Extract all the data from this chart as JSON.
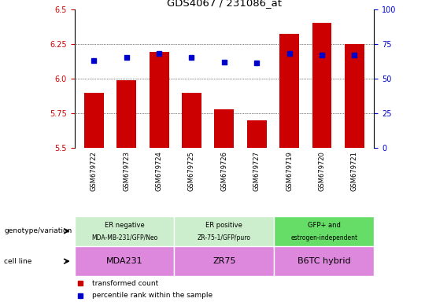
{
  "title": "GDS4067 / 231086_at",
  "samples": [
    "GSM679722",
    "GSM679723",
    "GSM679724",
    "GSM679725",
    "GSM679726",
    "GSM679727",
    "GSM679719",
    "GSM679720",
    "GSM679721"
  ],
  "bar_values": [
    5.9,
    5.99,
    6.19,
    5.9,
    5.78,
    5.7,
    6.32,
    6.4,
    6.25
  ],
  "dot_values": [
    6.13,
    6.15,
    6.18,
    6.15,
    6.12,
    6.11,
    6.18,
    6.17,
    6.17
  ],
  "ylim_left": [
    5.5,
    6.5
  ],
  "ylim_right": [
    0,
    100
  ],
  "yticks_left": [
    5.5,
    5.75,
    6.0,
    6.25,
    6.5
  ],
  "yticks_right": [
    0,
    25,
    50,
    75,
    100
  ],
  "bar_color": "#CC0000",
  "dot_color": "#0000CC",
  "group_colors": [
    "#cceecc",
    "#cceecc",
    "#66dd66"
  ],
  "cell_line_color": "#dd88dd",
  "genotype_labels": [
    "ER negative\nMDA-MB-231/GFP/Neo",
    "ER positive\nZR-75-1/GFP/puro",
    "GFP+ and\nestrogen-independent"
  ],
  "cell_line_labels": [
    "MDA231",
    "ZR75",
    "B6TC hybrid"
  ],
  "legend_bar_label": "transformed count",
  "legend_dot_label": "percentile rank within the sample",
  "tick_label_color_left": "#CC0000",
  "tick_label_color_right": "#0000CC",
  "gridline_ticks": [
    5.75,
    6.0,
    6.25
  ],
  "xlabel_bg_color": "#cccccc",
  "left_row_labels": [
    "genotype/variation",
    "cell line"
  ]
}
